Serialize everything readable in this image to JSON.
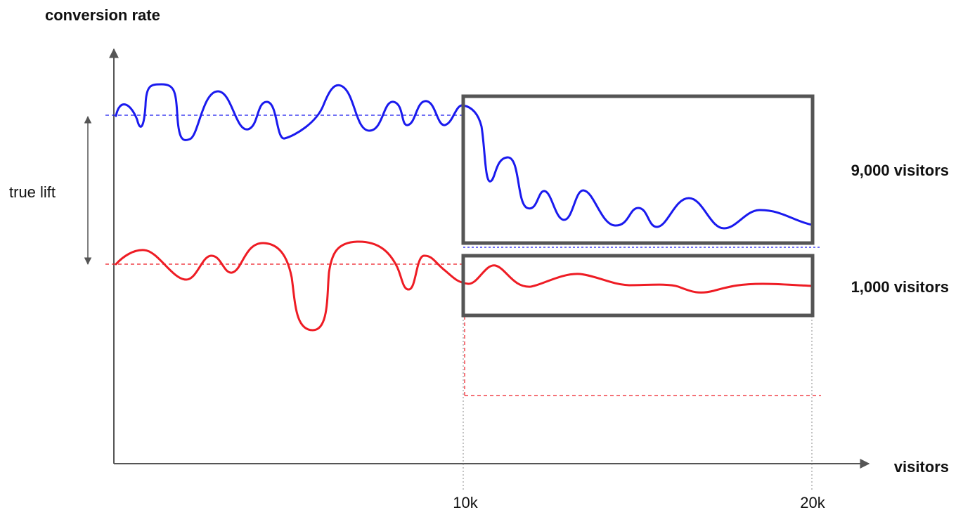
{
  "y_axis_title": "conversion rate",
  "x_axis_title": "visitors",
  "lift_label": "true lift",
  "x_ticks": [
    "10k",
    "20k"
  ],
  "box_labels": {
    "upper": "9,000 visitors",
    "lower": "1,000 visitors"
  },
  "colors": {
    "blue_line": "#1a1aee",
    "red_line": "#ee1c24",
    "box": "#555555",
    "axis": "#555555",
    "text": "#111111"
  }
}
